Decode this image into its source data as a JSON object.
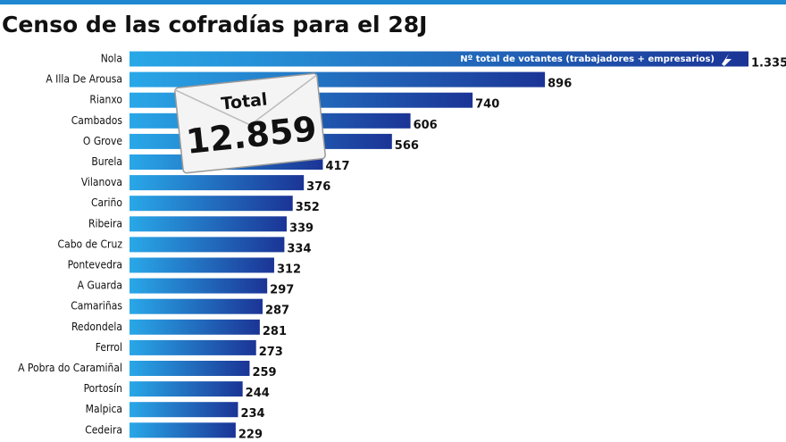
{
  "chart_data": {
    "type": "bar",
    "orientation": "horizontal",
    "title": "Censo de las cofradías para el 28J",
    "legend_label": "Nº total de votantes (trabajadores + empresarios)",
    "annotations": [
      "Total",
      "12.859"
    ],
    "categories": [
      "Nola",
      "A Illa De Arousa",
      "Rianxo",
      "Cambados",
      "O Grove",
      "Burela",
      "Vilanova",
      "Cariño",
      "Ribeira",
      "Cabo de Cruz",
      "Pontevedra",
      "A Guarda",
      "Camariñas",
      "Redondela",
      "Ferrol",
      "A Pobra do Caramiñal",
      "Portosín",
      "Malpica",
      "Cedeira"
    ],
    "values": [
      1335,
      896,
      740,
      606,
      566,
      417,
      376,
      352,
      339,
      334,
      312,
      297,
      287,
      281,
      273,
      259,
      244,
      234,
      229
    ],
    "value_labels": [
      "1.335",
      "896",
      "740",
      "606",
      "566",
      "417",
      "376",
      "352",
      "339",
      "334",
      "312",
      "297",
      "287",
      "281",
      "273",
      "259",
      "244",
      "234",
      "229"
    ],
    "color": "#1b3496"
  }
}
